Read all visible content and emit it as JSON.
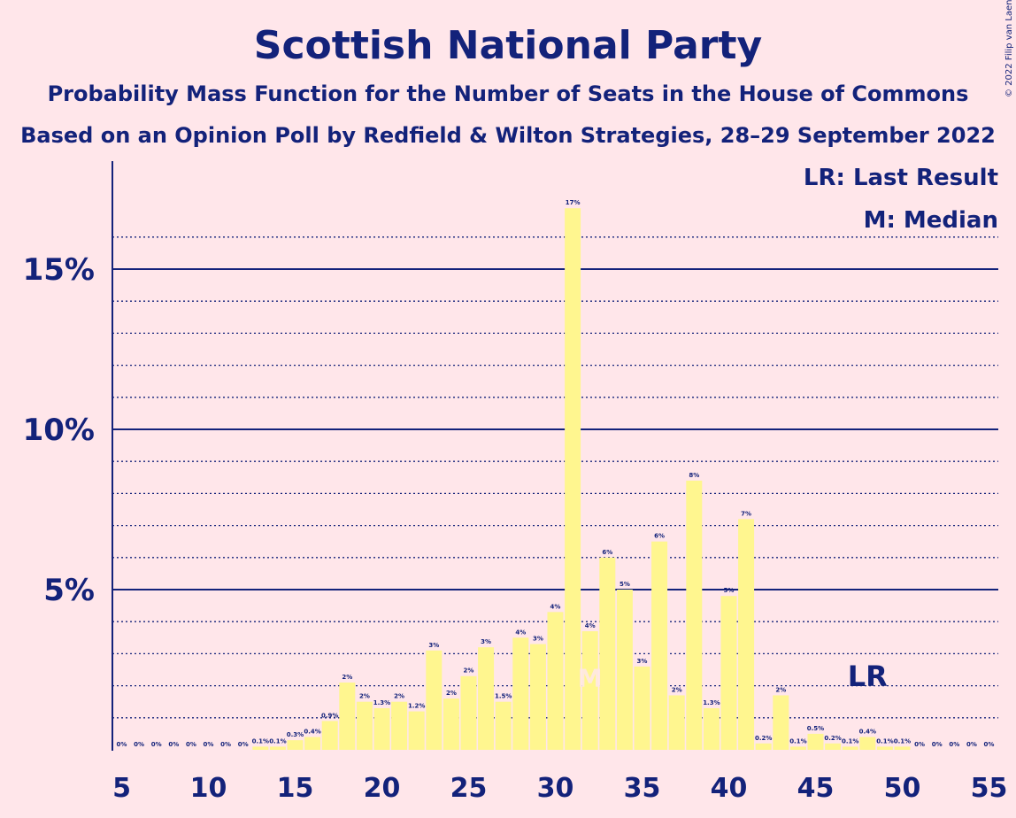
{
  "chart_data": {
    "type": "bar",
    "title": "Scottish National Party",
    "subtitle": "Probability Mass Function for the Number of Seats in the House of Commons",
    "subtitle2": "Based on an Opinion Poll by Redfield & Wilton Strategies, 28–29 September 2022",
    "copyright": "© 2022 Filip van Laenen",
    "xlabel": "",
    "ylabel": "",
    "xlim": [
      5,
      55
    ],
    "ylim": [
      0,
      18
    ],
    "x_ticks": [
      "5",
      "10",
      "15",
      "20",
      "25",
      "30",
      "35",
      "40",
      "45",
      "50",
      "55"
    ],
    "y_ticks": [
      {
        "value": 5,
        "label": "5%"
      },
      {
        "value": 10,
        "label": "10%"
      },
      {
        "value": 15,
        "label": "15%"
      }
    ],
    "gridlines": "dotted every 1%, solid every 5%",
    "bar_color": "#FFF68F",
    "accent_color": "#13227A",
    "bars": [
      {
        "x": 5,
        "value": 0,
        "label": "0%"
      },
      {
        "x": 6,
        "value": 0,
        "label": "0%"
      },
      {
        "x": 7,
        "value": 0,
        "label": "0%"
      },
      {
        "x": 8,
        "value": 0,
        "label": "0%"
      },
      {
        "x": 9,
        "value": 0,
        "label": "0%"
      },
      {
        "x": 10,
        "value": 0,
        "label": "0%"
      },
      {
        "x": 11,
        "value": 0,
        "label": "0%"
      },
      {
        "x": 12,
        "value": 0,
        "label": "0%"
      },
      {
        "x": 13,
        "value": 0.1,
        "label": "0.1%"
      },
      {
        "x": 14,
        "value": 0.1,
        "label": "0.1%"
      },
      {
        "x": 15,
        "value": 0.3,
        "label": "0.3%"
      },
      {
        "x": 16,
        "value": 0.4,
        "label": "0.4%"
      },
      {
        "x": 17,
        "value": 0.9,
        "label": "0.9%"
      },
      {
        "x": 18,
        "value": 2.1,
        "label": "2%"
      },
      {
        "x": 19,
        "value": 1.5,
        "label": "2%"
      },
      {
        "x": 20,
        "value": 1.3,
        "label": "1.3%"
      },
      {
        "x": 21,
        "value": 1.5,
        "label": "2%"
      },
      {
        "x": 22,
        "value": 1.2,
        "label": "1.2%"
      },
      {
        "x": 23,
        "value": 3.1,
        "label": "3%"
      },
      {
        "x": 24,
        "value": 1.6,
        "label": "2%"
      },
      {
        "x": 25,
        "value": 2.3,
        "label": "2%"
      },
      {
        "x": 26,
        "value": 3.2,
        "label": "3%"
      },
      {
        "x": 27,
        "value": 1.5,
        "label": "1.5%"
      },
      {
        "x": 28,
        "value": 3.5,
        "label": "4%"
      },
      {
        "x": 29,
        "value": 3.3,
        "label": "3%"
      },
      {
        "x": 30,
        "value": 4.3,
        "label": "4%"
      },
      {
        "x": 31,
        "value": 16.9,
        "label": "17%"
      },
      {
        "x": 32,
        "value": 3.7,
        "label": "4%"
      },
      {
        "x": 33,
        "value": 6.0,
        "label": "6%"
      },
      {
        "x": 34,
        "value": 5.0,
        "label": "5%"
      },
      {
        "x": 35,
        "value": 2.6,
        "label": "3%"
      },
      {
        "x": 36,
        "value": 6.5,
        "label": "6%"
      },
      {
        "x": 37,
        "value": 1.7,
        "label": "2%"
      },
      {
        "x": 38,
        "value": 8.4,
        "label": "8%"
      },
      {
        "x": 39,
        "value": 1.3,
        "label": "1.3%"
      },
      {
        "x": 40,
        "value": 4.8,
        "label": "5%"
      },
      {
        "x": 41,
        "value": 7.2,
        "label": "7%"
      },
      {
        "x": 42,
        "value": 0.2,
        "label": "0.2%"
      },
      {
        "x": 43,
        "value": 1.7,
        "label": "2%"
      },
      {
        "x": 44,
        "value": 0.1,
        "label": "0.1%"
      },
      {
        "x": 45,
        "value": 0.5,
        "label": "0.5%"
      },
      {
        "x": 46,
        "value": 0.2,
        "label": "0.2%"
      },
      {
        "x": 47,
        "value": 0.1,
        "label": "0.1%"
      },
      {
        "x": 48,
        "value": 0.4,
        "label": "0.4%"
      },
      {
        "x": 49,
        "value": 0.1,
        "label": "0.1%"
      },
      {
        "x": 50,
        "value": 0.1,
        "label": "0.1%"
      },
      {
        "x": 51,
        "value": 0,
        "label": "0%"
      },
      {
        "x": 52,
        "value": 0,
        "label": "0%"
      },
      {
        "x": 53,
        "value": 0,
        "label": "0%"
      },
      {
        "x": 54,
        "value": 0,
        "label": "0%"
      },
      {
        "x": 55,
        "value": 0,
        "label": "0%"
      }
    ],
    "median": {
      "x": 32,
      "marker": "M"
    },
    "last_result": {
      "x": 48,
      "marker": "LR"
    },
    "legend": [
      "LR: Last Result",
      "M: Median"
    ],
    "legend_position": "top-right"
  }
}
